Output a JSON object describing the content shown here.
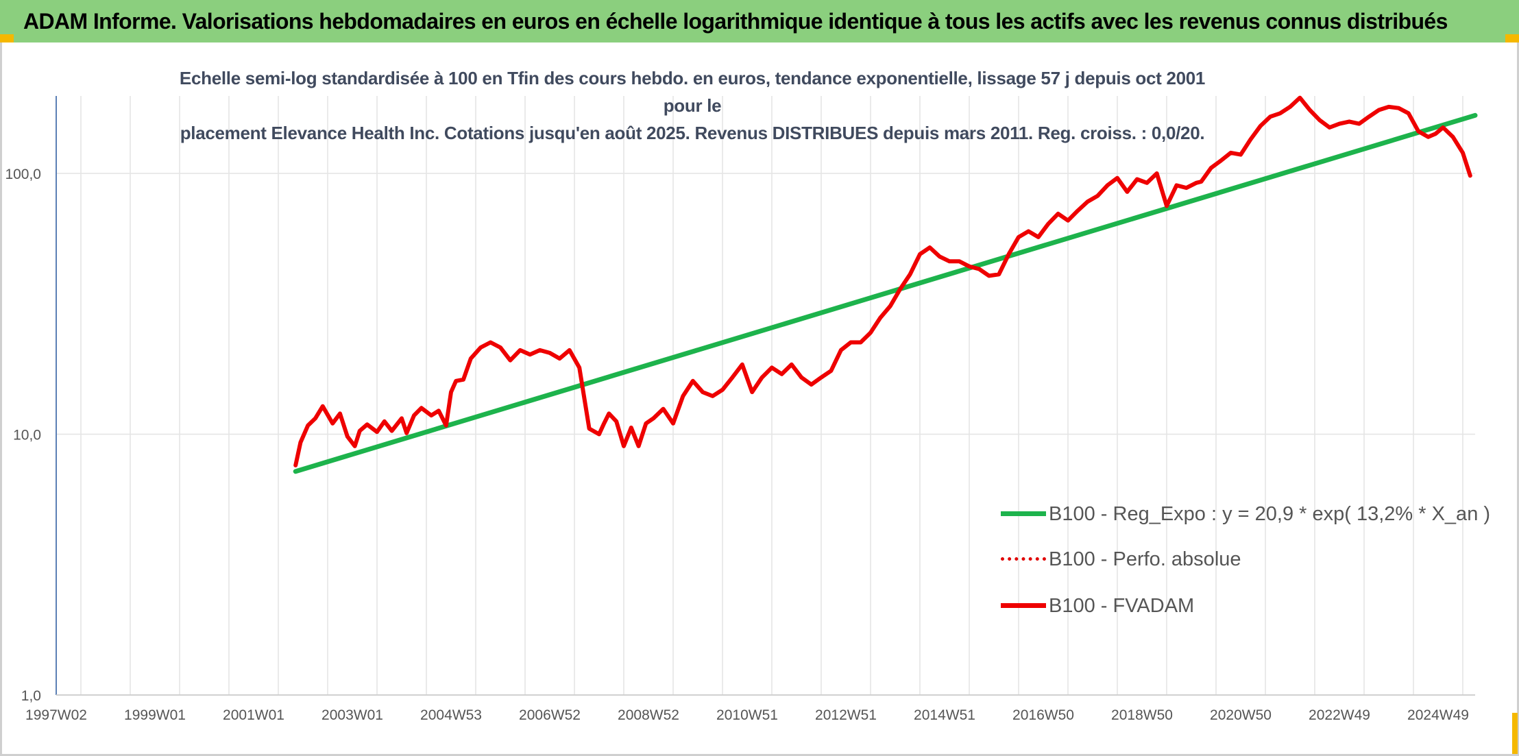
{
  "header": {
    "title": "ADAM Informe. Valorisations hebdomadaires en euros en échelle logarithmique identique à tous les actifs avec les revenus connus distribués"
  },
  "colors": {
    "header_bg": "#8bcf7e",
    "accent": "#f5b800",
    "trend": "#1db34c",
    "series": "#ee0000"
  },
  "chart_data": {
    "type": "line",
    "subtitle_line1": "Echelle semi-log standardisée à 100 en Tfin des cours hebdo. en euros, tendance exponentielle, lissage 57 j depuis oct 2001 pour le",
    "subtitle_line2": "placement Elevance Health Inc. Cotations jusqu'en août 2025. Revenus DISTRIBUES depuis mars 2011. Reg. croiss. : 0,0/20.",
    "y_scale": "log",
    "ylim": [
      1,
      200
    ],
    "y_ticks": [
      {
        "value": 1,
        "label": "1,0"
      },
      {
        "value": 10,
        "label": "10,0"
      },
      {
        "value": 100,
        "label": "100,0"
      }
    ],
    "xlim": [
      1997.0,
      2025.75
    ],
    "x_ticks": [
      {
        "value": 1997.0,
        "label": "1997W02"
      },
      {
        "value": 1999.0,
        "label": "1999W01"
      },
      {
        "value": 2001.0,
        "label": "2001W01"
      },
      {
        "value": 2003.0,
        "label": "2003W01"
      },
      {
        "value": 2005.0,
        "label": "2004W53"
      },
      {
        "value": 2007.0,
        "label": "2006W52"
      },
      {
        "value": 2009.0,
        "label": "2008W52"
      },
      {
        "value": 2011.0,
        "label": "2010W51"
      },
      {
        "value": 2013.0,
        "label": "2012W51"
      },
      {
        "value": 2015.0,
        "label": "2014W51"
      },
      {
        "value": 2017.0,
        "label": "2016W50"
      },
      {
        "value": 2019.0,
        "label": "2018W50"
      },
      {
        "value": 2021.0,
        "label": "2020W50"
      },
      {
        "value": 2023.0,
        "label": "2022W49"
      },
      {
        "value": 2025.0,
        "label": "2024W49"
      }
    ],
    "grid": "vertical",
    "legend_position": "bottom-right",
    "series": [
      {
        "name": "B100 - Reg_Expo : y = 20,9 * exp( 13,2% *  X_an )",
        "style": "solid-green",
        "x": [
          2001.85,
          2025.75
        ],
        "y": [
          7.2,
          167
        ]
      },
      {
        "name": "B100 - Perfo. absolue",
        "style": "dotted-red",
        "x": [],
        "y": []
      },
      {
        "name": "B100 - FVADAM",
        "style": "solid-red",
        "x": [
          2001.85,
          2001.95,
          2002.1,
          2002.25,
          2002.4,
          2002.6,
          2002.75,
          2002.9,
          2003.05,
          2003.15,
          2003.3,
          2003.5,
          2003.65,
          2003.8,
          2004.0,
          2004.1,
          2004.25,
          2004.4,
          2004.6,
          2004.75,
          2004.9,
          2005.0,
          2005.1,
          2005.25,
          2005.4,
          2005.6,
          2005.8,
          2006.0,
          2006.2,
          2006.4,
          2006.6,
          2006.8,
          2007.0,
          2007.2,
          2007.4,
          2007.6,
          2007.8,
          2008.0,
          2008.1,
          2008.2,
          2008.35,
          2008.5,
          2008.65,
          2008.8,
          2008.95,
          2009.1,
          2009.3,
          2009.5,
          2009.7,
          2009.9,
          2010.1,
          2010.3,
          2010.5,
          2010.7,
          2010.9,
          2011.1,
          2011.3,
          2011.5,
          2011.7,
          2011.9,
          2012.1,
          2012.3,
          2012.5,
          2012.7,
          2012.9,
          2013.1,
          2013.3,
          2013.5,
          2013.7,
          2013.9,
          2014.1,
          2014.3,
          2014.5,
          2014.7,
          2014.9,
          2015.1,
          2015.3,
          2015.5,
          2015.7,
          2015.9,
          2016.1,
          2016.3,
          2016.5,
          2016.7,
          2016.9,
          2017.1,
          2017.3,
          2017.5,
          2017.7,
          2017.9,
          2018.1,
          2018.3,
          2018.5,
          2018.7,
          2018.9,
          2019.1,
          2019.3,
          2019.5,
          2019.7,
          2019.9,
          2020.1,
          2020.2,
          2020.4,
          2020.6,
          2020.8,
          2021.0,
          2021.2,
          2021.4,
          2021.6,
          2021.8,
          2022.0,
          2022.2,
          2022.4,
          2022.6,
          2022.8,
          2023.0,
          2023.2,
          2023.4,
          2023.6,
          2023.8,
          2024.0,
          2024.2,
          2024.4,
          2024.6,
          2024.8,
          2024.95,
          2025.1,
          2025.3,
          2025.5,
          2025.65
        ],
        "y": [
          7.6,
          9.3,
          10.8,
          11.5,
          12.8,
          11.0,
          12.0,
          9.8,
          9.0,
          10.3,
          10.9,
          10.2,
          11.2,
          10.3,
          11.5,
          10.1,
          11.8,
          12.6,
          11.8,
          12.3,
          10.8,
          14.5,
          16.0,
          16.2,
          19.5,
          21.5,
          22.5,
          21.5,
          19.2,
          21.0,
          20.2,
          21.0,
          20.5,
          19.5,
          21.0,
          18.0,
          10.5,
          10.0,
          11.0,
          12.0,
          11.2,
          9.0,
          10.6,
          9.0,
          11.0,
          11.5,
          12.5,
          11.0,
          14.0,
          16.0,
          14.5,
          14.0,
          14.8,
          16.5,
          18.5,
          14.5,
          16.5,
          18.0,
          17.0,
          18.5,
          16.5,
          15.5,
          16.5,
          17.5,
          21.0,
          22.5,
          22.5,
          24.5,
          28.0,
          31.0,
          36.0,
          41.0,
          49.0,
          52.0,
          48.0,
          46.0,
          46.0,
          44.0,
          43.0,
          40.5,
          41.0,
          49.0,
          57.0,
          60.0,
          57.0,
          64.0,
          70.0,
          66.0,
          72.0,
          78.0,
          82.0,
          90.0,
          96.0,
          85.0,
          95.0,
          92.0,
          100.0,
          75.0,
          90.0,
          88.0,
          92.0,
          93.0,
          105.0,
          112.0,
          120.0,
          118.0,
          135.0,
          152.0,
          165.0,
          170.0,
          180.0,
          195.0,
          175.0,
          160.0,
          150.0,
          155.0,
          158.0,
          155.0,
          165.0,
          175.0,
          180.0,
          178.0,
          170.0,
          145.0,
          138.0,
          142.0,
          150.0,
          138.0,
          120.0,
          98.0
        ]
      }
    ]
  }
}
